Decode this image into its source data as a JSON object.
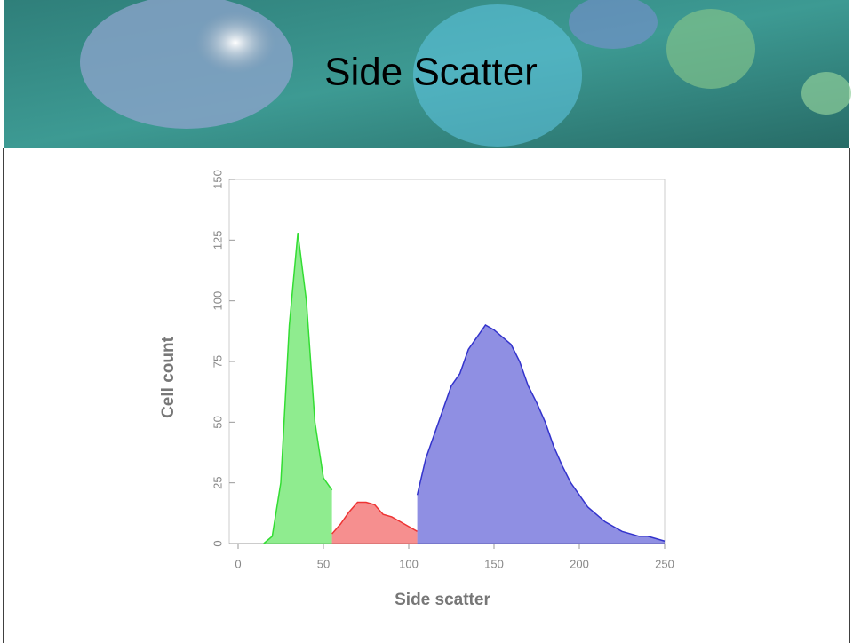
{
  "slide": {
    "title": "Side Scatter"
  },
  "chart_data": {
    "type": "area",
    "xlabel": "Side scatter",
    "ylabel": "Cell count",
    "x": [
      15,
      20,
      25,
      30,
      35,
      40,
      45,
      50,
      55,
      60,
      65,
      70,
      75,
      80,
      85,
      90,
      95,
      100,
      105,
      110,
      115,
      120,
      125,
      130,
      135,
      140,
      145,
      150,
      155,
      160,
      165,
      170,
      175,
      180,
      185,
      190,
      195,
      200,
      205,
      210,
      215,
      220,
      225,
      230,
      235,
      240,
      245,
      250
    ],
    "series": [
      {
        "color": "#33dd33",
        "values": [
          0,
          3,
          25,
          90,
          128,
          100,
          50,
          27,
          22,
          null,
          null,
          null,
          null,
          null,
          null,
          null,
          null,
          null,
          null,
          null,
          null,
          null,
          null,
          null,
          null,
          null,
          null,
          null,
          null,
          null,
          null,
          null,
          null,
          null,
          null,
          null,
          null,
          null,
          null,
          null,
          null,
          null,
          null,
          null,
          null,
          null,
          null,
          null
        ]
      },
      {
        "color": "#ee3333",
        "values": [
          null,
          null,
          null,
          null,
          null,
          null,
          null,
          null,
          4,
          8,
          13,
          17,
          17,
          16,
          12,
          11,
          9,
          7,
          5,
          null,
          null,
          null,
          null,
          null,
          null,
          null,
          null,
          null,
          null,
          null,
          null,
          null,
          null,
          null,
          null,
          null,
          null,
          null,
          null,
          null,
          null,
          null,
          null,
          null,
          null,
          null,
          null,
          null
        ]
      },
      {
        "color": "#3333cc",
        "values": [
          null,
          null,
          null,
          null,
          null,
          null,
          null,
          null,
          null,
          null,
          null,
          null,
          null,
          null,
          null,
          null,
          null,
          null,
          20,
          35,
          45,
          55,
          65,
          70,
          80,
          85,
          90,
          88,
          85,
          82,
          75,
          65,
          58,
          50,
          40,
          32,
          25,
          20,
          15,
          12,
          9,
          7,
          5,
          4,
          3,
          3,
          2,
          1
        ]
      }
    ],
    "xlim": [
      0,
      250
    ],
    "xticks": [
      0,
      50,
      100,
      150,
      200,
      250
    ],
    "ylim": [
      0,
      150
    ],
    "yticks": [
      0,
      25,
      50,
      75,
      100,
      125,
      150
    ]
  }
}
